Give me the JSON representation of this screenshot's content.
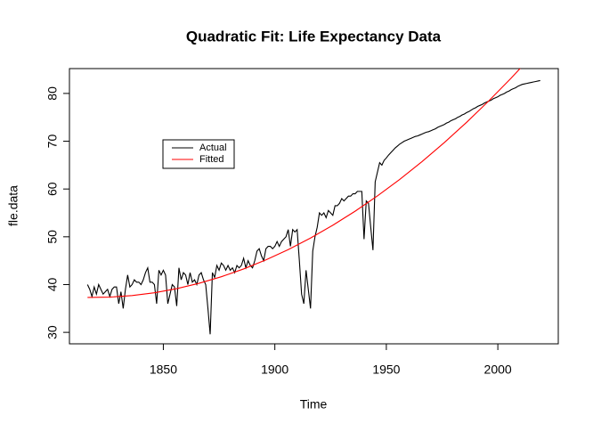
{
  "chart_data": {
    "type": "line",
    "title": "Quadratic Fit: Life Expectancy Data",
    "x_label": "Time",
    "y_label": "fle.data",
    "xlim": [
      1807.9,
      2027.1
    ],
    "xticks": [
      1850,
      1900,
      1950,
      2000
    ],
    "ylim": [
      27.6,
      85.2
    ],
    "yticks": [
      30,
      40,
      50,
      60,
      70,
      80
    ],
    "legend": "upper-left",
    "series": [
      {
        "name": "Actual",
        "color": "#000000",
        "x": [
          1816,
          1817,
          1818,
          1819,
          1820,
          1821,
          1822,
          1823,
          1824,
          1825,
          1826,
          1827,
          1828,
          1829,
          1830,
          1831,
          1832,
          1833,
          1834,
          1835,
          1836,
          1837,
          1838,
          1839,
          1840,
          1841,
          1842,
          1843,
          1844,
          1845,
          1846,
          1847,
          1848,
          1849,
          1850,
          1851,
          1852,
          1853,
          1854,
          1855,
          1856,
          1857,
          1858,
          1859,
          1860,
          1861,
          1862,
          1863,
          1864,
          1865,
          1866,
          1867,
          1868,
          1869,
          1870,
          1871,
          1872,
          1873,
          1874,
          1875,
          1876,
          1877,
          1878,
          1879,
          1880,
          1881,
          1882,
          1883,
          1884,
          1885,
          1886,
          1887,
          1888,
          1889,
          1890,
          1891,
          1892,
          1893,
          1894,
          1895,
          1896,
          1897,
          1898,
          1899,
          1900,
          1901,
          1902,
          1903,
          1904,
          1905,
          1906,
          1907,
          1908,
          1909,
          1910,
          1911,
          1912,
          1913,
          1914,
          1915,
          1916,
          1917,
          1918,
          1919,
          1920,
          1921,
          1922,
          1923,
          1924,
          1925,
          1926,
          1927,
          1928,
          1929,
          1930,
          1931,
          1932,
          1933,
          1934,
          1935,
          1936,
          1937,
          1938,
          1939,
          1940,
          1941,
          1942,
          1943,
          1944,
          1945,
          1946,
          1947,
          1948,
          1949,
          1950,
          1951,
          1952,
          1953,
          1954,
          1955,
          1956,
          1957,
          1958,
          1959,
          1960,
          1961,
          1962,
          1963,
          1964,
          1965,
          1966,
          1967,
          1968,
          1969,
          1970,
          1971,
          1972,
          1973,
          1974,
          1975,
          1976,
          1977,
          1978,
          1979,
          1980,
          1981,
          1982,
          1983,
          1984,
          1985,
          1986,
          1987,
          1988,
          1989,
          1990,
          1991,
          1992,
          1993,
          1994,
          1995,
          1996,
          1997,
          1998,
          1999,
          2000,
          2001,
          2002,
          2003,
          2004,
          2005,
          2006,
          2007,
          2008,
          2009,
          2010,
          2011,
          2012,
          2013,
          2014,
          2015,
          2016,
          2017,
          2018,
          2019
        ],
        "values": [
          40,
          39,
          37.5,
          39.5,
          38,
          40,
          39,
          38,
          38.5,
          39,
          37.5,
          39,
          39.5,
          39.5,
          36,
          38.5,
          35,
          39,
          42,
          39.5,
          40,
          41,
          40.5,
          40.5,
          40,
          41,
          42.5,
          43.5,
          40.5,
          40.5,
          40,
          36,
          43,
          42,
          43,
          42,
          36,
          38,
          40,
          39.5,
          35.5,
          43.5,
          41,
          42.5,
          42,
          40,
          42.5,
          40.5,
          41,
          40,
          42,
          42.5,
          41,
          40,
          35,
          29.6,
          42.5,
          41.5,
          44,
          43,
          44.5,
          44,
          43,
          44,
          43,
          43.5,
          42.5,
          44,
          43.5,
          44,
          45.5,
          43.5,
          45,
          44,
          43.5,
          45,
          47,
          47.5,
          46,
          45,
          47.5,
          48,
          48,
          47.5,
          48,
          49,
          48,
          49,
          49.5,
          50,
          51.5,
          48,
          51.5,
          51,
          51.5,
          45,
          38,
          36,
          43,
          39,
          35,
          47,
          50,
          52,
          55,
          54.5,
          55,
          54,
          55.5,
          55,
          54.5,
          56.5,
          56.5,
          57,
          58,
          57.5,
          58,
          58.5,
          58.5,
          59,
          59,
          59.5,
          59.5,
          59.5,
          49.5,
          57.5,
          57,
          52,
          47.2,
          61.5,
          63.5,
          65.5,
          65,
          66,
          66.5,
          67.1,
          67.6,
          68.1,
          68.6,
          69.0,
          69.4,
          69.7,
          70.0,
          70.2,
          70.4,
          70.6,
          70.8,
          71.0,
          71.1,
          71.3,
          71.5,
          71.7,
          71.9,
          72.0,
          72.2,
          72.4,
          72.6,
          72.9,
          73.1,
          73.3,
          73.5,
          73.8,
          74.0,
          74.3,
          74.5,
          74.7,
          75.0,
          75.2,
          75.5,
          75.7,
          76.0,
          76.2,
          76.5,
          76.8,
          77.0,
          77.3,
          77.5,
          77.7,
          78.0,
          78.2,
          78.4,
          78.6,
          78.9,
          79.1,
          79.3,
          79.6,
          79.8,
          80.0,
          80.3,
          80.5,
          80.8,
          81.0,
          81.2,
          81.5,
          81.7,
          81.9,
          82.0,
          82.1,
          82.2,
          82.3,
          82.4,
          82.5,
          82.6,
          82.7
        ]
      },
      {
        "name": "Fitted",
        "color": "#ff0000",
        "x": [
          1816,
          1826,
          1836,
          1846,
          1856,
          1866,
          1876,
          1886,
          1896,
          1906,
          1916,
          1926,
          1936,
          1946,
          1956,
          1966,
          1976,
          1986,
          1996,
          2006,
          2016,
          2019
        ],
        "values": [
          37.3,
          37.37,
          37.7,
          38.29,
          39.14,
          40.26,
          41.64,
          43.27,
          45.17,
          47.32,
          49.74,
          52.42,
          55.35,
          58.55,
          62.01,
          65.73,
          69.72,
          73.96,
          78.46,
          83.22,
          88.24,
          89.79
        ]
      }
    ]
  }
}
